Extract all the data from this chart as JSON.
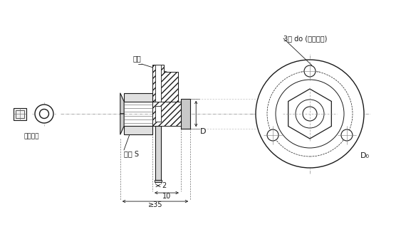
{
  "bg_color": "#ffffff",
  "lc": "#1a1a1a",
  "labels": {
    "ka_tao": "卡套",
    "ban_shou": "板手 S",
    "gu_ding_ka_tao": "固定卡套",
    "san_kong": "3孔 do (等分圆周)",
    "D_label": "D",
    "D0_label": "D₀",
    "dim_2": "2",
    "dim_10": "10",
    "dim_35": "≥35"
  },
  "fig_w": 5.63,
  "fig_h": 3.22,
  "dpi": 100
}
